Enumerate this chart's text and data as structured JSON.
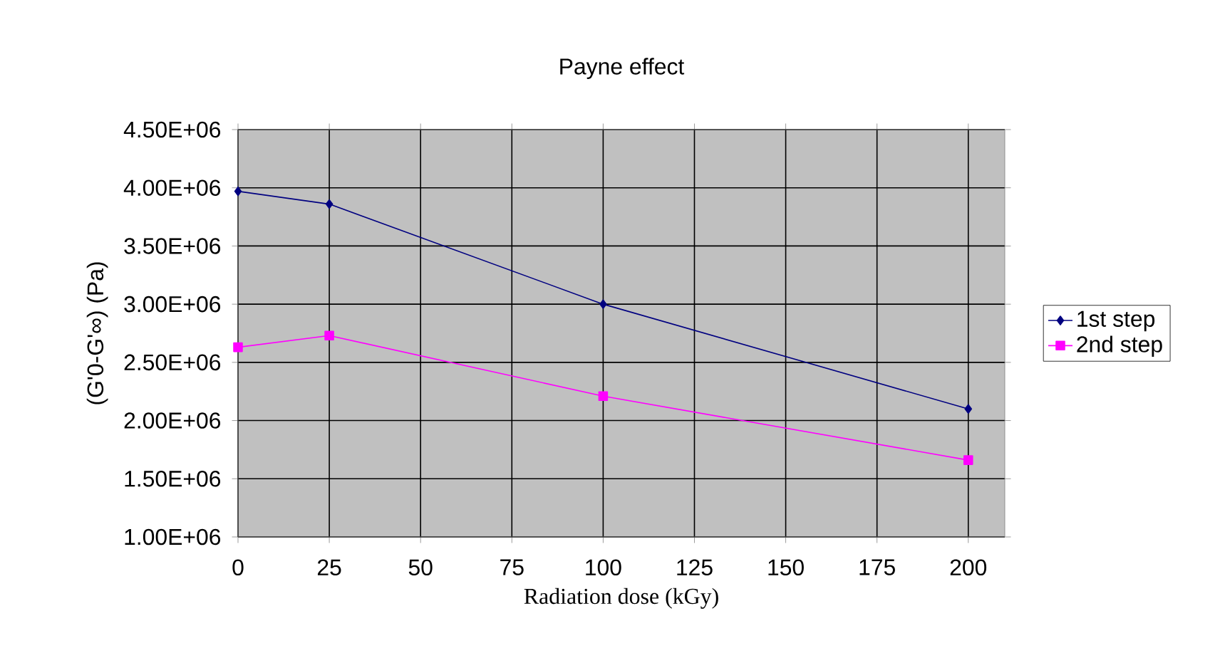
{
  "chart_data": {
    "type": "line",
    "title": "Payne effect",
    "xlabel": "Radiation dose  (kGy)",
    "ylabel": "(G'0-G'∞) (Pa)",
    "x": [
      0,
      25,
      100,
      200
    ],
    "series": [
      {
        "name": "1st step",
        "color": "#000080",
        "marker": "diamond",
        "values": [
          3970000,
          3860000,
          3000000,
          2100000
        ]
      },
      {
        "name": "2nd step",
        "color": "#ff00ff",
        "marker": "square",
        "values": [
          2630000,
          2730000,
          2210000,
          1660000
        ]
      }
    ],
    "xlim": [
      0,
      210
    ],
    "xticks": [
      0,
      25,
      50,
      75,
      100,
      125,
      150,
      175,
      200
    ],
    "ylim": [
      1000000,
      4500000
    ],
    "yticks": [
      {
        "value": 1000000,
        "label": "1.00E+06"
      },
      {
        "value": 1500000,
        "label": "1.50E+06"
      },
      {
        "value": 2000000,
        "label": "2.00E+06"
      },
      {
        "value": 2500000,
        "label": "2.50E+06"
      },
      {
        "value": 3000000,
        "label": "3.00E+06"
      },
      {
        "value": 3500000,
        "label": "3.50E+06"
      },
      {
        "value": 4000000,
        "label": "4.00E+06"
      },
      {
        "value": 4500000,
        "label": "4.50E+06"
      }
    ],
    "grid": true,
    "legend": "right",
    "line_style": "solid"
  }
}
